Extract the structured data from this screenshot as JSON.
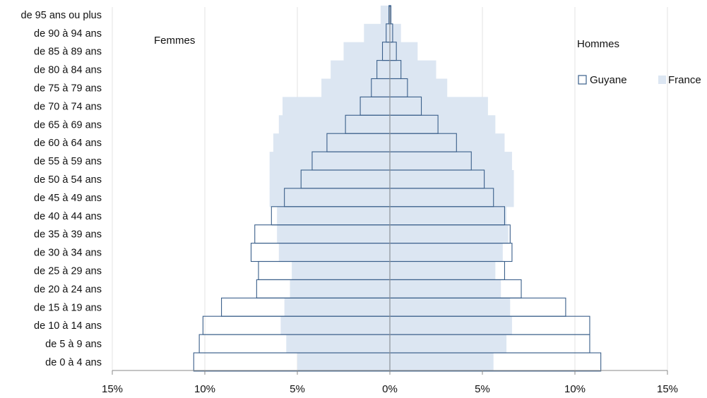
{
  "chart_data": {
    "type": "bar",
    "orientation": "horizontal",
    "subtype": "population-pyramid",
    "title": "",
    "xlabel": "",
    "ylabel": "",
    "left_label": "Femmes",
    "right_label": "Hommes",
    "x_range": [
      -15,
      15
    ],
    "x_ticks": [
      -15,
      -10,
      -5,
      0,
      5,
      10,
      15
    ],
    "x_tick_labels": [
      "15%",
      "10%",
      "5%",
      "0%",
      "5%",
      "10%",
      "15%"
    ],
    "grid": "vertical",
    "legend_position": "right",
    "categories": [
      "de 0 à 4 ans",
      "de 5 à 9 ans",
      "de 10 à 14 ans",
      "de 15 à 19 ans",
      "de 20 à 24 ans",
      "de 25 à 29 ans",
      "de 30 à 34 ans",
      "de 35 à 39 ans",
      "de 40 à 44 ans",
      "de 45 à 49 ans",
      "de 50 à 54 ans",
      "de 55 à 59 ans",
      "de 60 à 64 ans",
      "de 65 à 69 ans",
      "de 70 à 74 ans",
      "de 75 à 79 ans",
      "de 80 à 84 ans",
      "de 85 à 89 ans",
      "de 90 à 94 ans",
      "de 95 ans ou plus"
    ],
    "series": [
      {
        "name": "Guyane",
        "style": "outline",
        "color": "#3a5f8a",
        "femmes": [
          10.6,
          10.3,
          10.1,
          9.1,
          7.2,
          7.1,
          7.5,
          7.3,
          6.4,
          5.7,
          4.8,
          4.2,
          3.4,
          2.4,
          1.6,
          1.0,
          0.7,
          0.4,
          0.2,
          0.05
        ],
        "hommes": [
          11.4,
          10.8,
          10.8,
          9.5,
          7.1,
          6.2,
          6.6,
          6.5,
          6.2,
          5.6,
          5.1,
          4.4,
          3.6,
          2.6,
          1.7,
          0.95,
          0.6,
          0.35,
          0.15,
          0.05
        ]
      },
      {
        "name": "France",
        "style": "filled",
        "color": "#dce6f2",
        "femmes": [
          5.0,
          5.6,
          5.9,
          5.7,
          5.4,
          5.3,
          6.0,
          6.1,
          6.1,
          6.5,
          6.5,
          6.5,
          6.3,
          6.0,
          5.8,
          3.7,
          3.2,
          2.5,
          1.4,
          0.5
        ],
        "hommes": [
          5.6,
          6.3,
          6.6,
          6.5,
          6.0,
          5.7,
          6.1,
          6.4,
          6.3,
          6.7,
          6.7,
          6.6,
          6.2,
          5.7,
          5.3,
          3.1,
          2.5,
          1.5,
          0.6,
          0.1
        ]
      }
    ]
  }
}
